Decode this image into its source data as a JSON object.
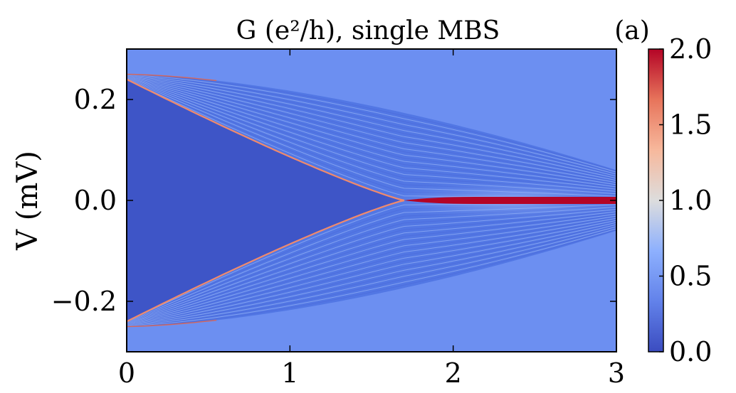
{
  "chart_data": {
    "type": "heatmap",
    "title": "G (e²/h), single MBS",
    "panel_label": "(a)",
    "xlabel": "",
    "ylabel": "V (mV)",
    "xlim": [
      0,
      3
    ],
    "ylim": [
      -0.3,
      0.3
    ],
    "x_ticks": [
      0,
      1,
      2,
      3
    ],
    "x_tick_labels": [
      "0",
      "1",
      "2",
      "3"
    ],
    "y_ticks": [
      -0.2,
      0.0,
      0.2
    ],
    "y_tick_labels": [
      "−0.2",
      "0.0",
      "0.2"
    ],
    "colorbar": {
      "range": [
        0.0,
        2.0
      ],
      "ticks": [
        0.0,
        0.5,
        1.0,
        1.5,
        2.0
      ],
      "tick_labels": [
        "0.0",
        "0.5",
        "1.0",
        "1.5",
        "2.0"
      ],
      "colormap": "coolwarm",
      "colors": [
        "#3b4cc0",
        "#6f92f3",
        "#aac7fd",
        "#dddddd",
        "#f7b89c",
        "#e7745b",
        "#b40426"
      ]
    },
    "features": {
      "gap_edge_V_at_x0": 0.24,
      "gap_closing_x": 1.7,
      "outer_envelope_V_at_x0": 0.25,
      "outer_envelope_V_at_x3": 0.06,
      "zero_bias_peak_x_range": [
        1.7,
        3.0
      ],
      "zero_bias_peak_G": 2.0,
      "background_G": 0.45,
      "gap_interior_G": 0.05
    }
  }
}
